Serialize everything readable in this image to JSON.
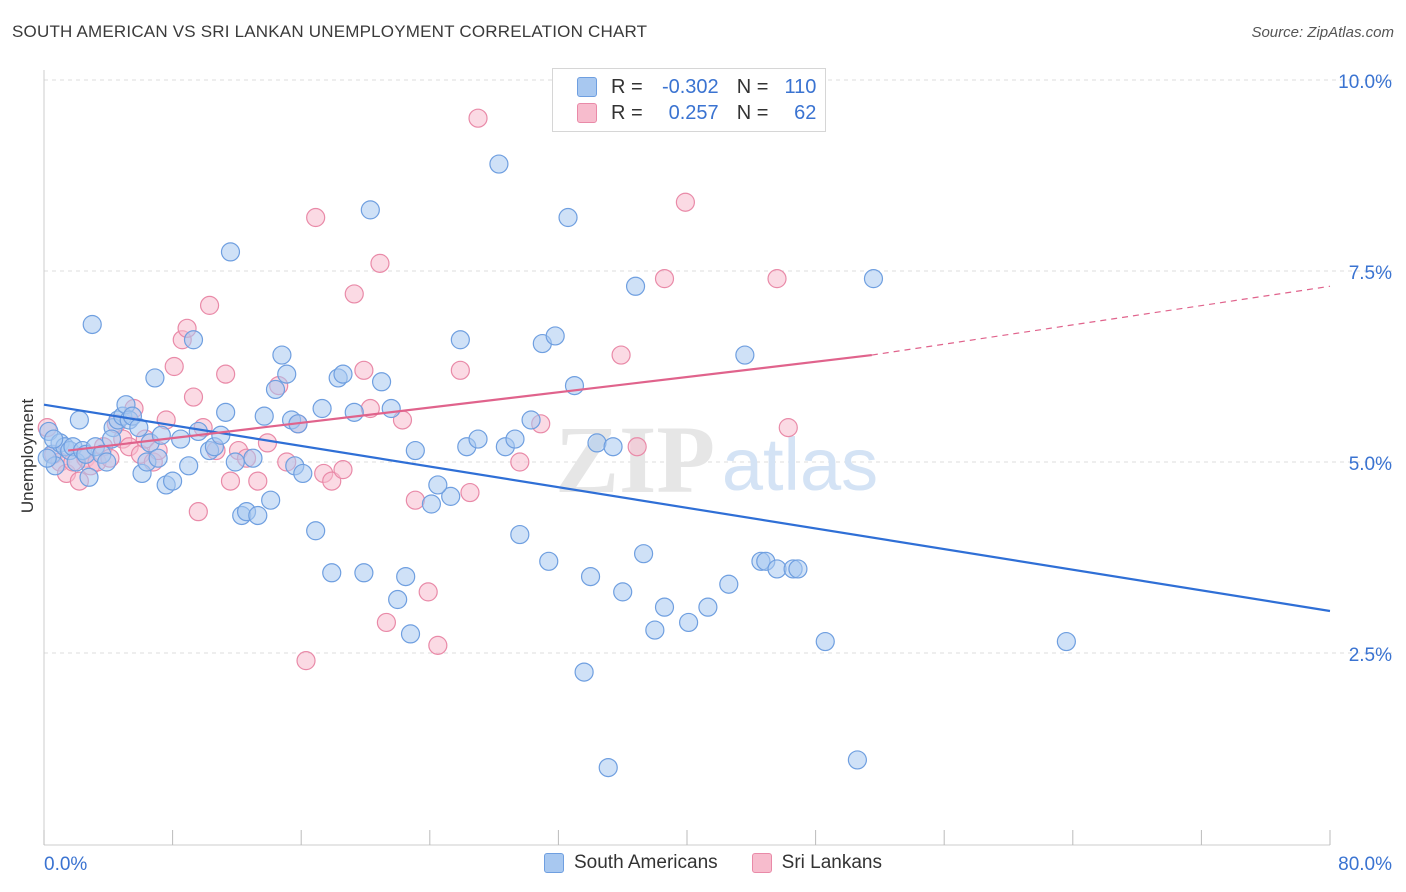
{
  "title": "SOUTH AMERICAN VS SRI LANKAN UNEMPLOYMENT CORRELATION CHART",
  "source": "Source: ZipAtlas.com",
  "watermark": {
    "zip": "ZIP",
    "atlas": "atlas"
  },
  "legend": {
    "rows": [
      {
        "r_label": "R =",
        "r_value": "-0.302",
        "n_label": "N =",
        "n_value": "110",
        "color": "#a8c8f0",
        "border": "#6f9fe0"
      },
      {
        "r_label": "R =",
        "r_value": "0.257",
        "n_label": "N =",
        "n_value": "62",
        "color": "#f7bccd",
        "border": "#e98aa8"
      }
    ]
  },
  "bottom_legend": [
    {
      "label": "South Americans",
      "color": "#a8c8f0",
      "border": "#6f9fe0"
    },
    {
      "label": "Sri Lankans",
      "color": "#f7bccd",
      "border": "#e98aa8"
    }
  ],
  "chart_data": {
    "type": "scatter",
    "title": "SOUTH AMERICAN VS SRI LANKAN UNEMPLOYMENT CORRELATION CHART",
    "xlabel": "",
    "ylabel": "Unemployment",
    "xlim": [
      0,
      80
    ],
    "ylim": [
      0,
      10
    ],
    "x_tick_labels": [
      "0.0%",
      "80.0%"
    ],
    "y_ticks": [
      2.5,
      5.0,
      7.5,
      10.0
    ],
    "y_tick_labels": [
      "2.5%",
      "5.0%",
      "7.5%",
      "10.0%"
    ],
    "grid": true,
    "series": [
      {
        "name": "South Americans",
        "color": "#6f9fe0",
        "fill": "#a8c8f0",
        "trend": {
          "x": [
            0,
            80
          ],
          "y": [
            5.75,
            3.05
          ],
          "color": "#2f6fd6"
        },
        "points": [
          [
            0.3,
            5.4
          ],
          [
            0.5,
            5.1
          ],
          [
            0.7,
            4.95
          ],
          [
            1.0,
            5.25
          ],
          [
            1.3,
            5.2
          ],
          [
            1.6,
            5.15
          ],
          [
            1.8,
            5.2
          ],
          [
            2.0,
            5.0
          ],
          [
            2.2,
            5.55
          ],
          [
            2.4,
            5.15
          ],
          [
            2.6,
            5.1
          ],
          [
            2.8,
            4.8
          ],
          [
            3.2,
            5.2
          ],
          [
            3.6,
            5.1
          ],
          [
            3.9,
            5.0
          ],
          [
            4.3,
            5.45
          ],
          [
            4.6,
            5.55
          ],
          [
            4.9,
            5.6
          ],
          [
            5.1,
            5.75
          ],
          [
            5.3,
            5.55
          ],
          [
            5.5,
            5.6
          ],
          [
            5.9,
            5.45
          ],
          [
            6.1,
            4.85
          ],
          [
            6.4,
            5.0
          ],
          [
            6.6,
            5.25
          ],
          [
            6.9,
            6.1
          ],
          [
            7.1,
            5.05
          ],
          [
            7.3,
            5.35
          ],
          [
            7.6,
            4.7
          ],
          [
            8.0,
            4.75
          ],
          [
            8.5,
            5.3
          ],
          [
            9.0,
            4.95
          ],
          [
            9.3,
            6.6
          ],
          [
            9.6,
            5.4
          ],
          [
            10.3,
            5.15
          ],
          [
            10.6,
            5.2
          ],
          [
            11.0,
            5.35
          ],
          [
            11.3,
            5.65
          ],
          [
            11.6,
            7.75
          ],
          [
            11.9,
            5.0
          ],
          [
            12.3,
            4.3
          ],
          [
            12.6,
            4.35
          ],
          [
            13.0,
            5.05
          ],
          [
            13.3,
            4.3
          ],
          [
            13.7,
            5.6
          ],
          [
            14.1,
            4.5
          ],
          [
            14.4,
            5.95
          ],
          [
            14.8,
            6.4
          ],
          [
            15.1,
            6.15
          ],
          [
            15.4,
            5.55
          ],
          [
            15.6,
            4.95
          ],
          [
            16.1,
            4.85
          ],
          [
            16.9,
            4.1
          ],
          [
            17.3,
            5.7
          ],
          [
            17.9,
            3.55
          ],
          [
            18.3,
            6.1
          ],
          [
            18.6,
            6.15
          ],
          [
            19.3,
            5.65
          ],
          [
            19.9,
            3.55
          ],
          [
            20.3,
            8.3
          ],
          [
            21.0,
            6.05
          ],
          [
            21.6,
            5.7
          ],
          [
            22.0,
            3.2
          ],
          [
            22.5,
            3.5
          ],
          [
            22.8,
            2.75
          ],
          [
            23.1,
            5.15
          ],
          [
            24.1,
            4.45
          ],
          [
            25.3,
            4.55
          ],
          [
            25.9,
            6.6
          ],
          [
            26.3,
            5.2
          ],
          [
            27.0,
            5.3
          ],
          [
            28.3,
            8.9
          ],
          [
            28.7,
            5.2
          ],
          [
            29.3,
            5.3
          ],
          [
            29.6,
            4.05
          ],
          [
            30.3,
            5.55
          ],
          [
            31.0,
            6.55
          ],
          [
            31.4,
            3.7
          ],
          [
            31.8,
            6.65
          ],
          [
            32.6,
            8.2
          ],
          [
            33.0,
            6.0
          ],
          [
            33.6,
            2.25
          ],
          [
            34.0,
            3.5
          ],
          [
            34.4,
            5.25
          ],
          [
            35.1,
            1.0
          ],
          [
            35.4,
            5.2
          ],
          [
            36.0,
            3.3
          ],
          [
            36.8,
            7.3
          ],
          [
            37.3,
            3.8
          ],
          [
            38.0,
            2.8
          ],
          [
            38.6,
            3.1
          ],
          [
            40.1,
            2.9
          ],
          [
            41.3,
            3.1
          ],
          [
            42.6,
            3.4
          ],
          [
            43.6,
            6.4
          ],
          [
            44.6,
            3.7
          ],
          [
            44.9,
            3.7
          ],
          [
            45.6,
            3.6
          ],
          [
            46.6,
            3.6
          ],
          [
            46.9,
            3.6
          ],
          [
            48.6,
            2.65
          ],
          [
            50.6,
            1.1
          ],
          [
            51.6,
            7.4
          ],
          [
            63.6,
            2.65
          ],
          [
            0.2,
            5.05
          ],
          [
            0.6,
            5.3
          ],
          [
            3.0,
            6.8
          ],
          [
            4.2,
            5.3
          ],
          [
            15.8,
            5.5
          ],
          [
            24.5,
            4.7
          ]
        ]
      },
      {
        "name": "Sri Lankans",
        "color": "#e98aa8",
        "fill": "#f7bccd",
        "trend": {
          "x": [
            1.5,
            51.5
          ],
          "y": [
            5.15,
            6.4
          ],
          "dash_to": [
            80,
            7.3
          ],
          "color": "#e0638c"
        },
        "points": [
          [
            0.2,
            5.45
          ],
          [
            0.6,
            5.1
          ],
          [
            1.0,
            5.0
          ],
          [
            1.4,
            4.85
          ],
          [
            1.8,
            5.0
          ],
          [
            2.2,
            4.75
          ],
          [
            2.6,
            5.05
          ],
          [
            2.9,
            4.95
          ],
          [
            3.3,
            5.0
          ],
          [
            3.7,
            5.2
          ],
          [
            4.1,
            5.05
          ],
          [
            4.5,
            5.5
          ],
          [
            4.9,
            5.3
          ],
          [
            5.3,
            5.2
          ],
          [
            5.6,
            5.7
          ],
          [
            6.0,
            5.1
          ],
          [
            6.3,
            5.3
          ],
          [
            6.8,
            5.0
          ],
          [
            7.1,
            5.15
          ],
          [
            7.6,
            5.55
          ],
          [
            8.1,
            6.25
          ],
          [
            8.6,
            6.6
          ],
          [
            8.9,
            6.75
          ],
          [
            9.3,
            5.85
          ],
          [
            9.6,
            4.35
          ],
          [
            9.9,
            5.45
          ],
          [
            10.3,
            7.05
          ],
          [
            10.7,
            5.15
          ],
          [
            11.3,
            6.15
          ],
          [
            11.6,
            4.75
          ],
          [
            12.1,
            5.15
          ],
          [
            12.6,
            5.05
          ],
          [
            13.3,
            4.75
          ],
          [
            13.9,
            5.25
          ],
          [
            14.6,
            6.0
          ],
          [
            15.1,
            5.0
          ],
          [
            15.8,
            5.5
          ],
          [
            16.3,
            2.4
          ],
          [
            16.9,
            8.2
          ],
          [
            17.4,
            4.85
          ],
          [
            17.9,
            4.75
          ],
          [
            18.6,
            4.9
          ],
          [
            19.3,
            7.2
          ],
          [
            19.9,
            6.2
          ],
          [
            20.3,
            5.7
          ],
          [
            20.9,
            7.6
          ],
          [
            21.3,
            2.9
          ],
          [
            22.3,
            5.55
          ],
          [
            23.1,
            4.5
          ],
          [
            23.9,
            3.3
          ],
          [
            24.5,
            2.6
          ],
          [
            25.9,
            6.2
          ],
          [
            26.5,
            4.6
          ],
          [
            27.0,
            9.5
          ],
          [
            29.6,
            5.0
          ],
          [
            30.9,
            5.5
          ],
          [
            35.9,
            6.4
          ],
          [
            36.9,
            5.2
          ],
          [
            38.6,
            7.4
          ],
          [
            39.9,
            8.4
          ],
          [
            45.6,
            7.4
          ],
          [
            46.3,
            5.45
          ]
        ]
      }
    ]
  }
}
